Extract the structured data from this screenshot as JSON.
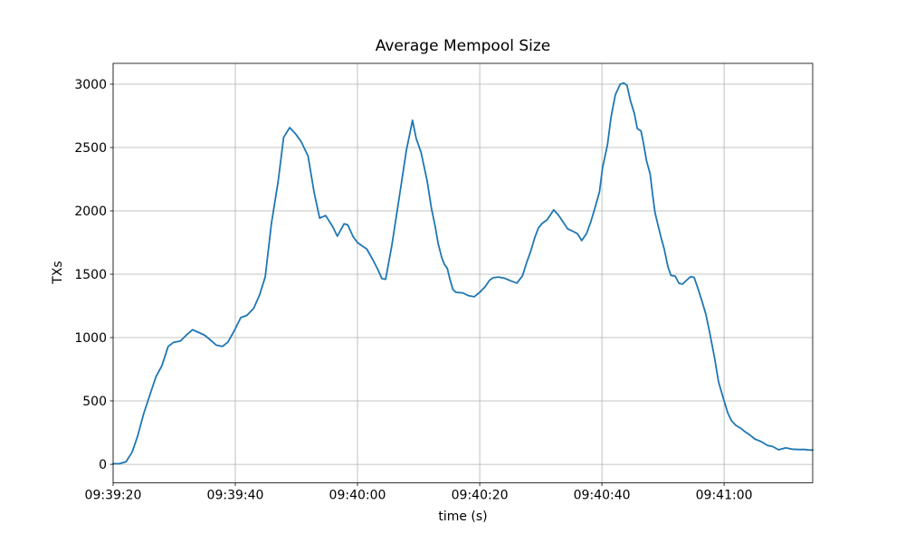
{
  "figure": {
    "background": "#ffffff"
  },
  "chart_data": {
    "type": "line",
    "title": "Average Mempool Size",
    "xlabel": "time (s)",
    "ylabel": "TXs",
    "legend": null,
    "grid": true,
    "line_color": "#1f77b4",
    "grid_color": "#b0b0b0",
    "spine_color": "#000000",
    "tick_label_color": "#000000",
    "xlim_seconds": [
      0,
      114.5
    ],
    "ylim": [
      -146,
      3164
    ],
    "yticks": [
      0,
      500,
      1000,
      1500,
      2000,
      2500,
      3000
    ],
    "xticks": [
      {
        "t": 0,
        "label": "09:39:20"
      },
      {
        "t": 20,
        "label": "09:39:40"
      },
      {
        "t": 40,
        "label": "09:40:00"
      },
      {
        "t": 60,
        "label": "09:40:20"
      },
      {
        "t": 80,
        "label": "09:40:40"
      },
      {
        "t": 100,
        "label": "09:41:00"
      }
    ],
    "series": [
      {
        "name": "average mempool size",
        "points": [
          [
            0,
            5
          ],
          [
            1,
            5
          ],
          [
            2.1,
            20
          ],
          [
            3.1,
            95
          ],
          [
            4,
            220
          ],
          [
            5,
            400
          ],
          [
            6.1,
            560
          ],
          [
            7,
            690
          ],
          [
            8,
            780
          ],
          [
            9,
            930
          ],
          [
            9.9,
            962
          ],
          [
            11,
            972
          ],
          [
            12,
            1020
          ],
          [
            13,
            1062
          ],
          [
            13.9,
            1043
          ],
          [
            15,
            1018
          ],
          [
            15.9,
            982
          ],
          [
            16.9,
            940
          ],
          [
            17.9,
            930
          ],
          [
            18.8,
            965
          ],
          [
            19.9,
            1060
          ],
          [
            20.9,
            1158
          ],
          [
            21.9,
            1175
          ],
          [
            23,
            1230
          ],
          [
            24,
            1340
          ],
          [
            24.9,
            1480
          ],
          [
            25.9,
            1900
          ],
          [
            27,
            2230
          ],
          [
            27.9,
            2580
          ],
          [
            28.9,
            2657
          ],
          [
            29.9,
            2605
          ],
          [
            30.8,
            2545
          ],
          [
            31.9,
            2432
          ],
          [
            32.9,
            2145
          ],
          [
            33.8,
            1943
          ],
          [
            34.8,
            1963
          ],
          [
            35.9,
            1878
          ],
          [
            36.7,
            1800
          ],
          [
            37.8,
            1898
          ],
          [
            38.4,
            1890
          ],
          [
            39.3,
            1795
          ],
          [
            40,
            1750
          ],
          [
            41,
            1715
          ],
          [
            41.5,
            1700
          ],
          [
            42.5,
            1615
          ],
          [
            43.3,
            1540
          ],
          [
            44,
            1465
          ],
          [
            44.6,
            1460
          ],
          [
            45.6,
            1720
          ],
          [
            46.8,
            2100
          ],
          [
            48,
            2480
          ],
          [
            49,
            2715
          ],
          [
            49.6,
            2571
          ],
          [
            50.4,
            2460
          ],
          [
            51.4,
            2236
          ],
          [
            52.1,
            2021
          ],
          [
            52.7,
            1880
          ],
          [
            53.2,
            1740
          ],
          [
            53.8,
            1630
          ],
          [
            54.2,
            1580
          ],
          [
            54.7,
            1545
          ],
          [
            55.1,
            1465
          ],
          [
            55.6,
            1380
          ],
          [
            56.1,
            1357
          ],
          [
            57.2,
            1353
          ],
          [
            58.2,
            1330
          ],
          [
            59.1,
            1322
          ],
          [
            60,
            1357
          ],
          [
            60.9,
            1402
          ],
          [
            61.6,
            1452
          ],
          [
            62.2,
            1472
          ],
          [
            63.1,
            1478
          ],
          [
            64.1,
            1468
          ],
          [
            65.2,
            1445
          ],
          [
            66.1,
            1430
          ],
          [
            67,
            1487
          ],
          [
            67.7,
            1593
          ],
          [
            68.4,
            1690
          ],
          [
            69,
            1787
          ],
          [
            69.6,
            1865
          ],
          [
            70.2,
            1900
          ],
          [
            71,
            1928
          ],
          [
            71.6,
            1970
          ],
          [
            72.1,
            2008
          ],
          [
            72.9,
            1965
          ],
          [
            73.6,
            1915
          ],
          [
            74.4,
            1858
          ],
          [
            75.1,
            1843
          ],
          [
            76,
            1820
          ],
          [
            76.7,
            1765
          ],
          [
            77.5,
            1822
          ],
          [
            78.2,
            1915
          ],
          [
            79,
            2045
          ],
          [
            79.6,
            2150
          ],
          [
            80.1,
            2340
          ],
          [
            80.9,
            2520
          ],
          [
            81.5,
            2740
          ],
          [
            82.2,
            2915
          ],
          [
            83,
            3000
          ],
          [
            83.6,
            3008
          ],
          [
            84.1,
            2990
          ],
          [
            84.7,
            2865
          ],
          [
            85.3,
            2770
          ],
          [
            85.8,
            2650
          ],
          [
            86.4,
            2630
          ],
          [
            86.8,
            2535
          ],
          [
            87.3,
            2395
          ],
          [
            87.9,
            2290
          ],
          [
            88.3,
            2130
          ],
          [
            88.7,
            1985
          ],
          [
            89.3,
            1863
          ],
          [
            89.8,
            1770
          ],
          [
            90.2,
            1700
          ],
          [
            90.8,
            1560
          ],
          [
            91.3,
            1490
          ],
          [
            92,
            1485
          ],
          [
            92.6,
            1428
          ],
          [
            93.2,
            1422
          ],
          [
            93.8,
            1450
          ],
          [
            94.5,
            1480
          ],
          [
            95.1,
            1475
          ],
          [
            95.7,
            1390
          ],
          [
            96.4,
            1285
          ],
          [
            97,
            1185
          ],
          [
            97.6,
            1050
          ],
          [
            98.4,
            850
          ],
          [
            99.1,
            650
          ],
          [
            100,
            500
          ],
          [
            100.6,
            405
          ],
          [
            101.2,
            345
          ],
          [
            101.9,
            308
          ],
          [
            102.7,
            285
          ],
          [
            103.4,
            258
          ],
          [
            104.1,
            235
          ],
          [
            105,
            200
          ],
          [
            106.1,
            178
          ],
          [
            107.1,
            150
          ],
          [
            108,
            140
          ],
          [
            108.9,
            115
          ],
          [
            110.1,
            130
          ],
          [
            111.1,
            120
          ],
          [
            112.1,
            117
          ],
          [
            113.2,
            117
          ],
          [
            114.1,
            112
          ],
          [
            114.5,
            113
          ]
        ]
      }
    ]
  }
}
